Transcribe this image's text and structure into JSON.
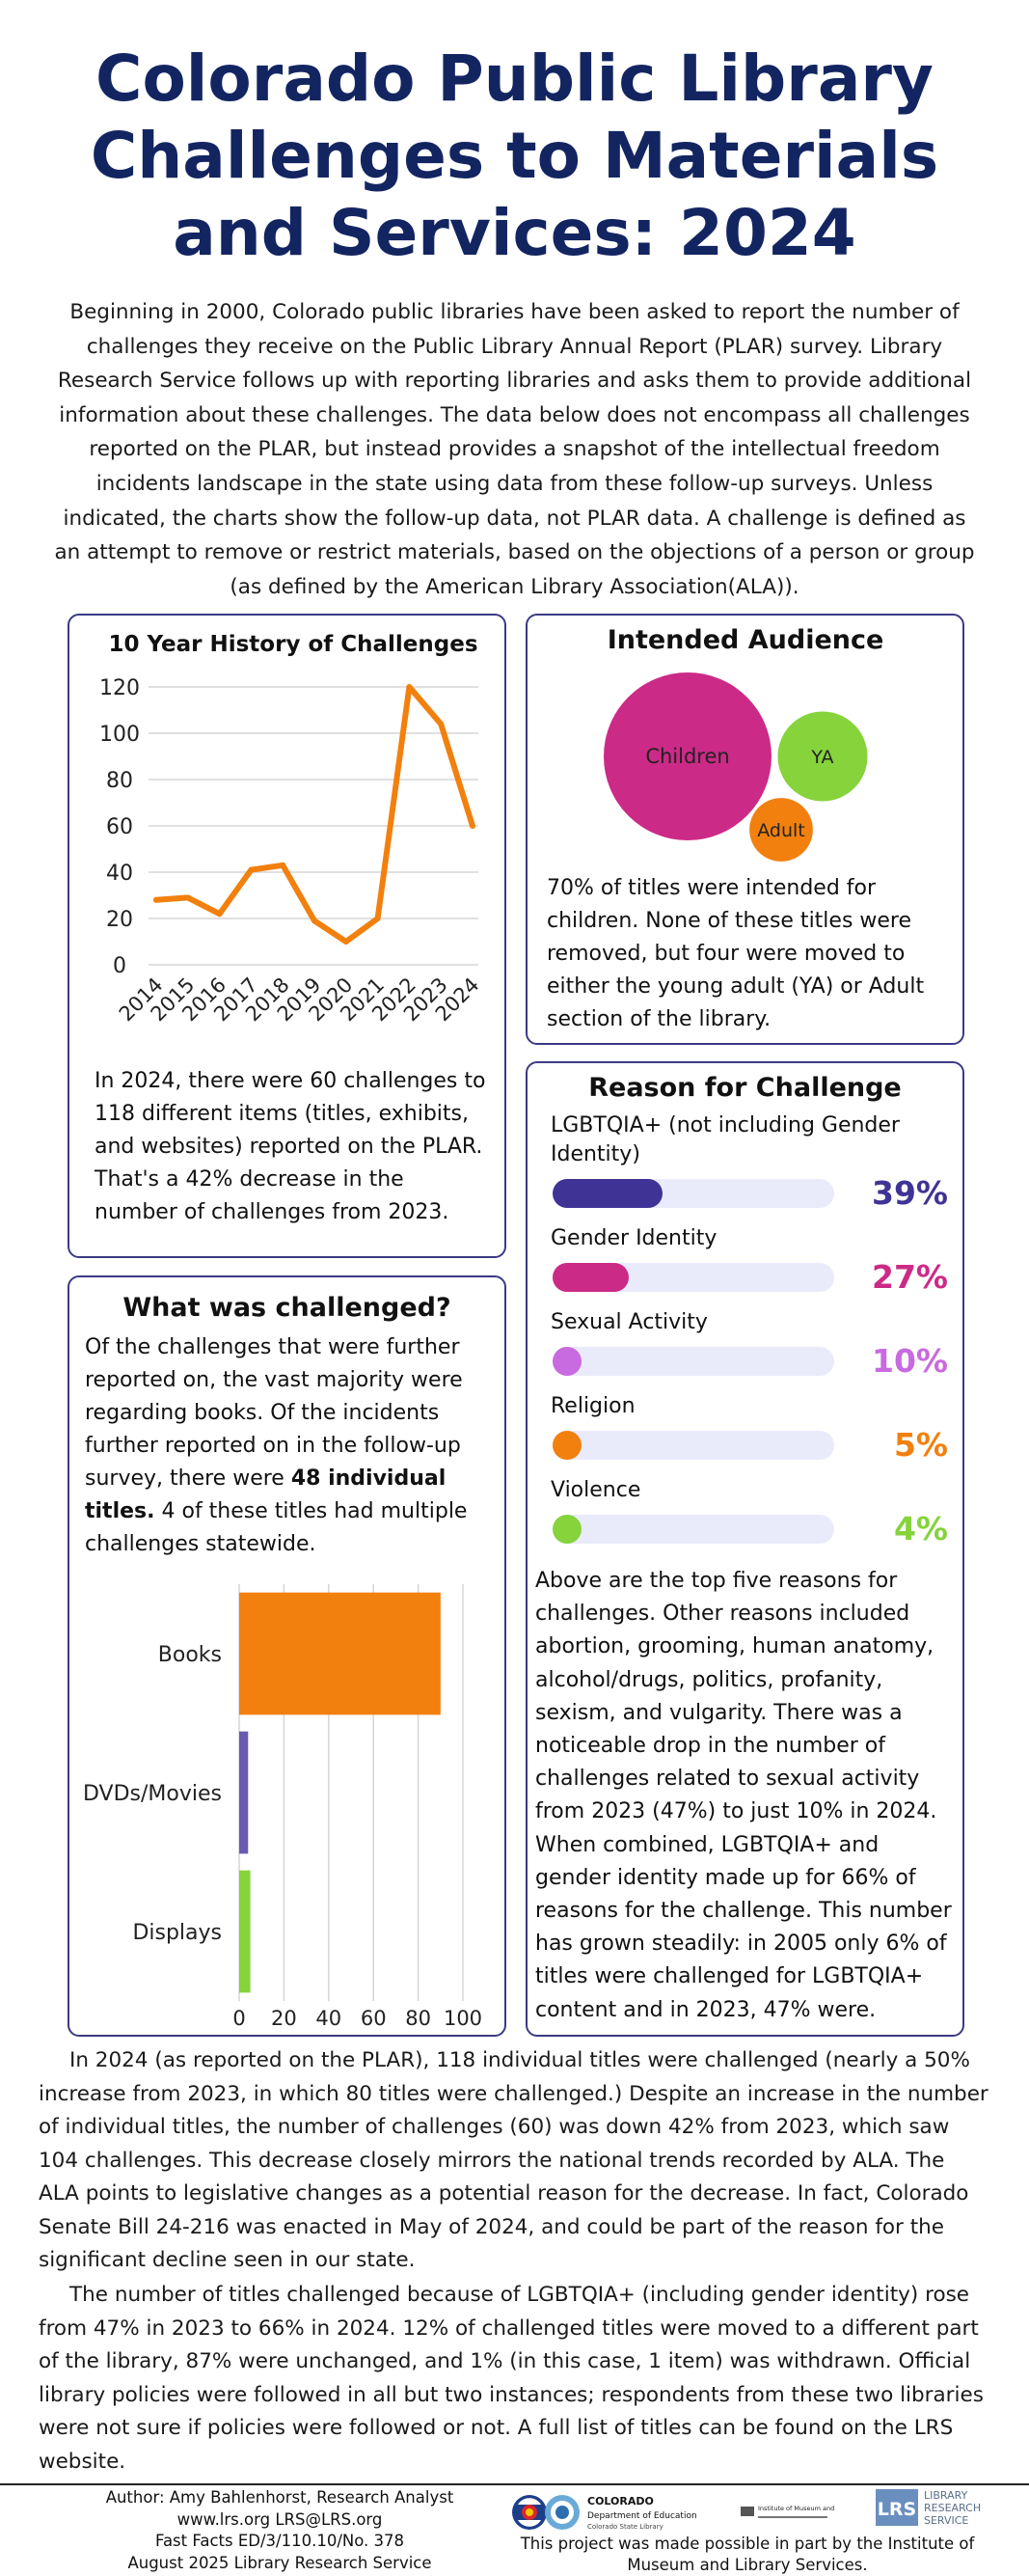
{
  "title": "Colorado Public Library Challenges to Materials and Services: 2024",
  "intro": "Beginning in 2000, Colorado public libraries have been asked to report the number of challenges they receive on the Public Library Annual Report (PLAR) survey. Library Research Service follows up with reporting libraries and asks them to provide additional information about these challenges. The data below does not encompass all challenges reported on the PLAR, but instead provides a snapshot of the intellectual freedom incidents landscape in the state using data from these follow-up surveys. Unless indicated, the charts show the follow-up data, not PLAR data. A challenge is defined as an attempt to remove or restrict materials, based on the objections of a person or group (as defined by the American Library Association(ALA)).",
  "history": {
    "text": "In 2024, there were 60 challenges to 118 different items (titles, exhibits, and websites) reported on the PLAR. That's a 42% decrease in the number of challenges from 2023."
  },
  "audience": {
    "text": "70% of titles were intended for children. None of these titles were removed, but four were moved to either the young adult (YA) or Adult section of the library."
  },
  "challenged": {
    "title": "What was challenged?",
    "text_before": "Of the challenges that were further reported on, the vast majority were regarding books. Of the incidents further reported on in the follow-up survey, there were ",
    "text_bold": "48 individual titles.",
    "text_after": " 4 of these titles had multiple challenges statewide."
  },
  "reasons": {
    "title": "Reason for Challenge",
    "items": [
      {
        "label": "LGBTQIA+ (not including Gender Identity)",
        "percent": 39,
        "display": "39%",
        "color": "#3f3396"
      },
      {
        "label": "Gender Identity",
        "percent": 27,
        "display": "27%",
        "color": "#cc2a87"
      },
      {
        "label": "Sexual Activity",
        "percent": 10,
        "display": "10%",
        "color": "#c86ae0"
      },
      {
        "label": "Religion",
        "percent": 5,
        "display": "5%",
        "color": "#f2800e"
      },
      {
        "label": "Violence",
        "percent": 4,
        "display": "4%",
        "color": "#86d33c"
      }
    ],
    "text": "Above are the top five reasons for challenges. Other reasons included abortion, grooming, human anatomy, alcohol/drugs, politics, profanity, sexism, and vulgarity. There was a noticeable drop in the number of challenges related to sexual activity from 2023 (47%) to just 10% in 2024. When combined, LGBTQIA+ and gender identity made up for 66% of reasons for the challenge. This number has grown steadily: in 2005 only 6% of titles were challenged for LGBTQIA+ content and in 2023, 47% were."
  },
  "bottom": {
    "p1": "In 2024 (as reported on the PLAR), 118 individual titles were challenged (nearly a 50% increase from 2023, in which 80 titles were challenged.) Despite an increase in the number of individual titles, the number of challenges (60) was down 42% from 2023, which saw 104 challenges. This decrease closely mirrors the national trends recorded by ALA. The ALA points to legislative changes as a potential reason for the decrease. In fact, Colorado Senate Bill 24-216 was enacted in May of 2024, and could be part of the reason for the significant decline seen in our state.",
    "p2": "The number of titles challenged because of LGBTQIA+ (including gender identity) rose from 47% in 2023 to 66% in 2024. 12% of challenged titles were moved to a different part of the library, 87% were unchanged, and 1% (in this case, 1 item) was withdrawn. Official library policies were followed in all but two instances; respondents from these two libraries were not sure if policies were followed or not. A full list of titles can be found on the LRS website."
  },
  "footer": {
    "author": "Author: Amy Bahlenhorst, Research Analyst",
    "contact": "www.lrs.org LRS@LRS.org",
    "fastfacts": "Fast Facts ED/3/110.10/No. 378",
    "date": "August 2025 Library Research Service",
    "credit": "This project was made possible in part by the Institute of Museum and Library Services.",
    "cde_logo": "COLORADO",
    "cde_sub": "Department of Education",
    "cde_tag": "Colorado State Library",
    "imls_logo": "Institute of Museum and Library Services",
    "lrs_mark": "LRS",
    "lrs_logo": [
      "LIBRARY",
      "RESEARCH",
      "SERVICE"
    ]
  },
  "chart_data": [
    {
      "type": "line",
      "title": "10 Year History of Challenges",
      "x": [
        "2014",
        "2015",
        "2016",
        "2017",
        "2018",
        "2019",
        "2020",
        "2021",
        "2022",
        "2023",
        "2024"
      ],
      "series": [
        {
          "values": [
            28,
            29,
            22,
            41,
            43,
            19,
            10,
            20,
            120,
            104,
            60
          ],
          "color": "#f2800e"
        }
      ],
      "ylim": [
        0,
        120
      ],
      "yticks": [
        0,
        20,
        40,
        60,
        80,
        100,
        120
      ],
      "grid": true,
      "xlabel": "",
      "ylabel": ""
    },
    {
      "type": "bubble",
      "title": "Intended Audience",
      "categories": [
        "Children",
        "YA",
        "Adult"
      ],
      "values": [
        70,
        20,
        10
      ],
      "colors": [
        "#cc2a87",
        "#86d33c",
        "#f2800e"
      ]
    },
    {
      "type": "bar",
      "orientation": "horizontal",
      "categories": [
        "Books",
        "DVDs/Movies",
        "Displays"
      ],
      "values": [
        90,
        4,
        5
      ],
      "colors": [
        "#f2800e",
        "#6a5bb0",
        "#86d33c"
      ],
      "xlim": [
        0,
        100
      ],
      "xticks": [
        0,
        20,
        40,
        60,
        80,
        100
      ],
      "grid": true,
      "xlabel": "",
      "ylabel": ""
    }
  ]
}
